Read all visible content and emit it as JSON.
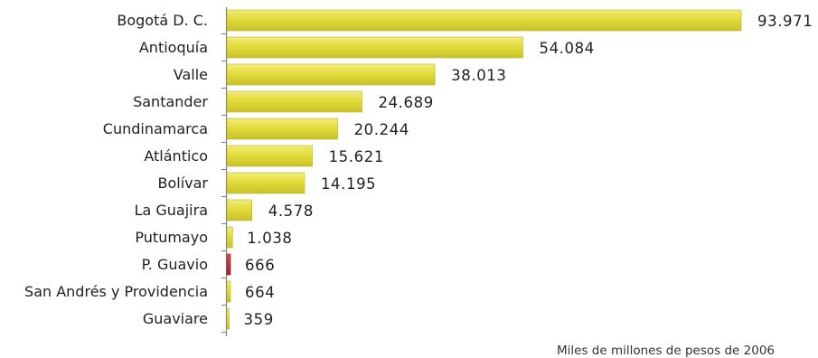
{
  "chart_data": {
    "type": "bar",
    "orientation": "horizontal",
    "categories": [
      "Bogotá D. C.",
      "Antioquía",
      "Valle",
      "Santander",
      "Cundinamarca",
      "Atlántico",
      "Bolívar",
      "La Guajira",
      "Putumayo",
      "P. Guavio",
      "San Andrés y Providencia",
      "Guaviare"
    ],
    "values": [
      93971,
      54084,
      38013,
      24689,
      20244,
      15621,
      14195,
      4578,
      1038,
      666,
      664,
      359
    ],
    "value_labels": [
      "93.971",
      "54.084",
      "38.013",
      "24.689",
      "20.244",
      "15.621",
      "14.195",
      "4.578",
      "1.038",
      "666",
      "664",
      "359"
    ],
    "highlight_category": "P. Guavio",
    "note": "Miles de millones de pesos de 2006",
    "xlim": [
      0,
      93971
    ],
    "grid": false,
    "legend": "none",
    "colors": {
      "bar": "#e3dc3a",
      "bar_edge": "#bdb528",
      "highlight": "#c8283a",
      "axis": "#7f7f7f",
      "text": "#1f1f1f"
    }
  }
}
